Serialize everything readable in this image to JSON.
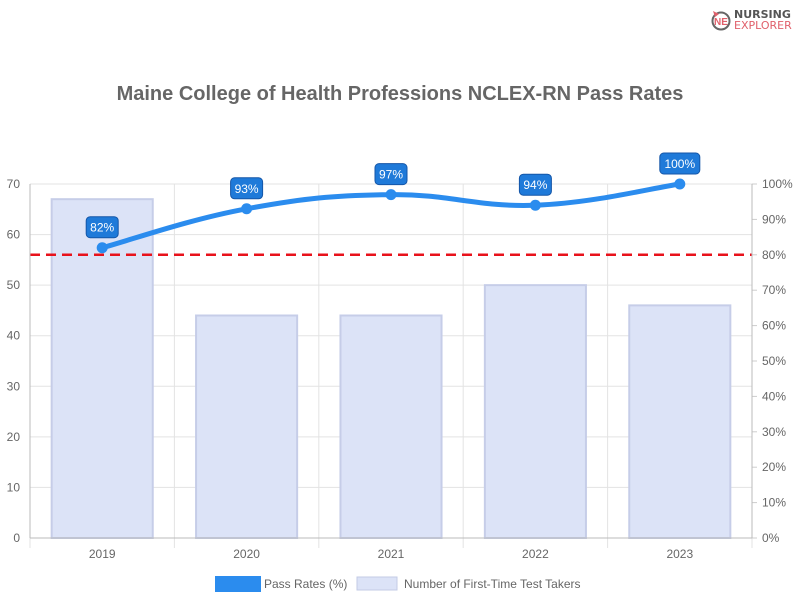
{
  "logo": {
    "line1": "NURSING",
    "line2": "EXPLORER",
    "mark": "NE"
  },
  "chart_data": {
    "type": "bar+line",
    "title": "Maine College of Health Professions NCLEX-RN Pass Rates",
    "categories": [
      "2019",
      "2020",
      "2021",
      "2022",
      "2023"
    ],
    "series": [
      {
        "name": "Pass Rates (%)",
        "type": "line",
        "axis": "right",
        "values": [
          82,
          93,
          97,
          94,
          100
        ],
        "labels": [
          "82%",
          "93%",
          "97%",
          "94%",
          "100%"
        ],
        "color": "#2b8cee"
      },
      {
        "name": "Number of First-Time Test Takers",
        "type": "bar",
        "axis": "left",
        "values": [
          67,
          44,
          44,
          50,
          46
        ],
        "color": "#dce3f7"
      }
    ],
    "reference_line": {
      "axis": "right",
      "value": 80,
      "style": "dashed",
      "color": "#e8121b"
    },
    "y_left": {
      "min": 0,
      "max": 70,
      "ticks": [
        "0",
        "10",
        "20",
        "30",
        "40",
        "50",
        "60",
        "70"
      ]
    },
    "y_right": {
      "min": 0,
      "max": 100,
      "ticks": [
        "0%",
        "10%",
        "20%",
        "30%",
        "40%",
        "50%",
        "60%",
        "70%",
        "80%",
        "90%",
        "100%"
      ]
    },
    "grid": true,
    "legend": "bottom"
  }
}
